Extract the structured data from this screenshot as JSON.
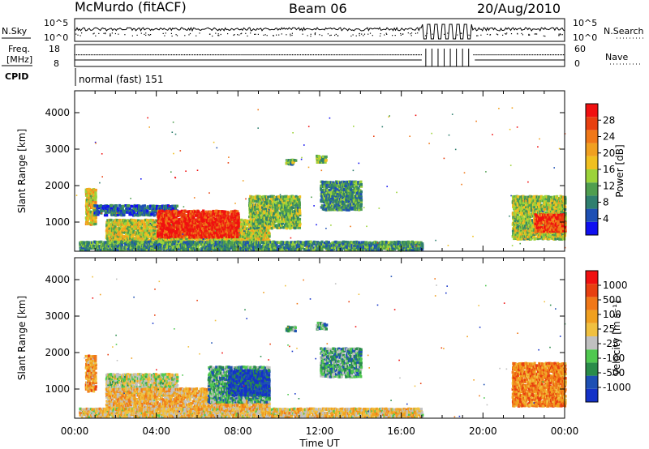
{
  "header": {
    "station": "McMurdo (fitACF)",
    "beam": "Beam 06",
    "date": "20/Aug/2010"
  },
  "strip": {
    "nsky_label": "N.Sky",
    "nsearch_label": "N.Search",
    "nsky_ticks": [
      "10^5",
      "10^0"
    ],
    "nsearch_ticks": [
      "10^5",
      "10^0"
    ],
    "freq_label_1": "Freq.",
    "freq_label_2": "[MHz]",
    "freq_ticks": [
      "18",
      "8"
    ],
    "nave_label": "Nave",
    "nave_ticks": [
      "60",
      "0"
    ],
    "cpid_label": "CPID",
    "cpid_value": "normal (fast) 151"
  },
  "chart_data": [
    {
      "type": "heatmap",
      "name": "power",
      "ylabel": "Slant Range [km]",
      "yticks": [
        1000,
        2000,
        3000,
        4000
      ],
      "ylim": [
        200,
        4600
      ],
      "xlim": [
        0,
        24
      ],
      "colorbar": {
        "label": "Power [dB]",
        "ticks": [
          "4",
          "8",
          "12",
          "16",
          "20",
          "24",
          "28"
        ],
        "colors": [
          "#1010f0",
          "#1e50b4",
          "#2f7f6f",
          "#4f9e4f",
          "#9cd33a",
          "#f0c020",
          "#f0a020",
          "#f07818",
          "#e84010",
          "#f01010"
        ]
      },
      "echo_regions": [
        {
          "t0": 0.5,
          "t1": 1.0,
          "r0": 900,
          "r1": 1900,
          "level": 0.55
        },
        {
          "t0": 0.9,
          "t1": 5.0,
          "r0": 1150,
          "r1": 1450,
          "level": 0.2
        },
        {
          "t0": 1.5,
          "t1": 9.5,
          "r0": 400,
          "r1": 1050,
          "level": 0.5
        },
        {
          "t0": 4.0,
          "t1": 8.0,
          "r0": 550,
          "r1": 1300,
          "level": 0.9
        },
        {
          "t0": 8.5,
          "t1": 11.0,
          "r0": 800,
          "r1": 1700,
          "level": 0.4
        },
        {
          "t0": 10.3,
          "t1": 10.8,
          "r0": 2550,
          "r1": 2700,
          "level": 0.35
        },
        {
          "t0": 11.8,
          "t1": 12.3,
          "r0": 2600,
          "r1": 2800,
          "level": 0.4
        },
        {
          "t0": 12.0,
          "t1": 14.0,
          "r0": 1300,
          "r1": 2100,
          "level": 0.3
        },
        {
          "t0": 21.4,
          "t1": 24.0,
          "r0": 500,
          "r1": 1700,
          "level": 0.45
        },
        {
          "t0": 22.5,
          "t1": 24.0,
          "r0": 700,
          "r1": 1200,
          "level": 0.85
        },
        {
          "t0": 0.2,
          "t1": 17.0,
          "r0": 200,
          "r1": 450,
          "level": 0.3
        }
      ]
    },
    {
      "type": "heatmap",
      "name": "velocity",
      "ylabel": "Slant Range [km]",
      "yticks": [
        1000,
        2000,
        3000,
        4000
      ],
      "ylim": [
        200,
        4600
      ],
      "xlim": [
        0,
        24
      ],
      "xticks": [
        "00:00",
        "04:00",
        "08:00",
        "12:00",
        "16:00",
        "20:00",
        "00:00"
      ],
      "xlabel": "Time UT",
      "colorbar": {
        "label": "Velocity [m s⁻¹]",
        "ticks": [
          "1000",
          "500",
          "100",
          "25",
          "-25",
          "-100",
          "-500",
          "-1000"
        ],
        "colors": [
          "#1432c8",
          "#1e50b4",
          "#2a8c4a",
          "#50c850",
          "#c0c0c0",
          "#f0c040",
          "#f0a020",
          "#f07818",
          "#e84010",
          "#f01010"
        ]
      },
      "echo_regions": [
        {
          "t0": 0.5,
          "t1": 1.0,
          "r0": 900,
          "r1": 1900,
          "level": 0.65
        },
        {
          "t0": 1.5,
          "t1": 5.0,
          "r0": 850,
          "r1": 1400,
          "level": 0.45
        },
        {
          "t0": 1.5,
          "t1": 9.5,
          "r0": 400,
          "r1": 1000,
          "level": 0.6
        },
        {
          "t0": 6.5,
          "t1": 9.5,
          "r0": 600,
          "r1": 1600,
          "level": 0.3
        },
        {
          "t0": 7.5,
          "t1": 9.5,
          "r0": 800,
          "r1": 1500,
          "level": 0.1
        },
        {
          "t0": 10.3,
          "t1": 10.8,
          "r0": 2550,
          "r1": 2700,
          "level": 0.3
        },
        {
          "t0": 11.8,
          "t1": 12.3,
          "r0": 2600,
          "r1": 2800,
          "level": 0.3
        },
        {
          "t0": 12.0,
          "t1": 14.0,
          "r0": 1300,
          "r1": 2100,
          "level": 0.3
        },
        {
          "t0": 21.4,
          "t1": 24.0,
          "r0": 500,
          "r1": 1700,
          "level": 0.72
        },
        {
          "t0": 0.2,
          "t1": 17.0,
          "r0": 200,
          "r1": 450,
          "level": 0.55
        }
      ]
    }
  ]
}
